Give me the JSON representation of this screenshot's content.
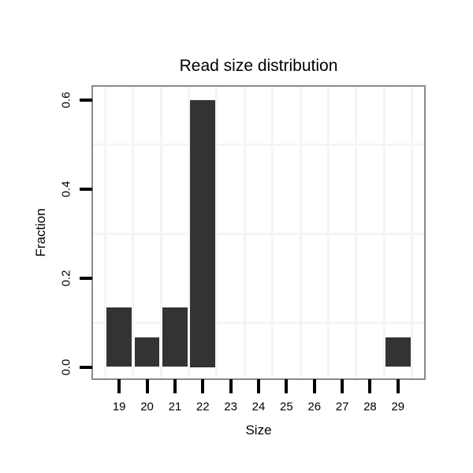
{
  "chart_data": {
    "type": "bar",
    "title": "Read size distribution",
    "xlabel": "Size",
    "ylabel": "Fraction",
    "categories": [
      "19",
      "20",
      "21",
      "22",
      "23",
      "24",
      "25",
      "26",
      "27",
      "28",
      "29"
    ],
    "values": [
      0.133,
      0.067,
      0.133,
      0.6,
      0,
      0,
      0,
      0,
      0,
      0,
      0.067
    ],
    "ylim": [
      0,
      0.6
    ],
    "yticks": [
      0.0,
      0.2,
      0.4,
      0.6
    ],
    "ytick_labels": [
      "0.0",
      "0.2",
      "0.4",
      "0.6"
    ],
    "minor_gridlines_y": [
      0.1,
      0.3,
      0.5
    ],
    "grid": "minor-only",
    "legend_position": "none",
    "colors": {
      "bar": "#333333",
      "panel_border": "#8a8a8a",
      "gridline": "#f5f5f5",
      "tick": "#000000",
      "text": "#000000",
      "background": "#ffffff"
    }
  }
}
